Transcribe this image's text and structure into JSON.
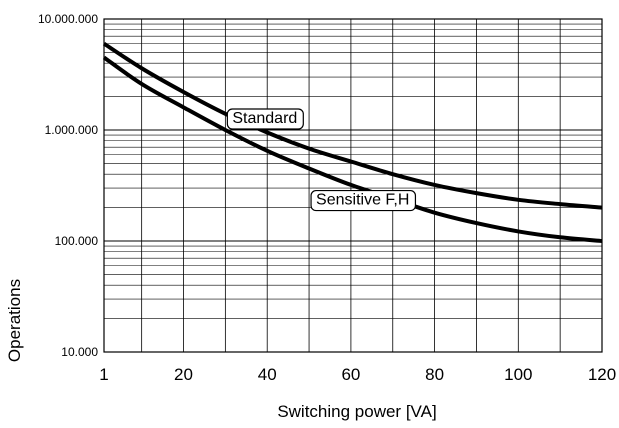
{
  "chart_data": {
    "type": "line",
    "title": "",
    "xlabel": "Switching power  [VA]",
    "ylabel": "Operations",
    "x_scale": "linear",
    "y_scale": "log",
    "xlim": [
      1,
      120
    ],
    "ylim": [
      10000,
      10000000
    ],
    "grid": true,
    "x_ticks": [
      1,
      20,
      40,
      60,
      80,
      100,
      120
    ],
    "x_tick_labels": [
      "1",
      "20",
      "40",
      "60",
      "80",
      "100",
      "120"
    ],
    "y_ticks": [
      10000,
      100000,
      1000000,
      10000000
    ],
    "y_tick_labels": [
      "10.000",
      "100.000",
      "1.000.000",
      "10.000.000"
    ],
    "series": [
      {
        "name": "Standard",
        "x": [
          1,
          10,
          20,
          30,
          40,
          50,
          60,
          70,
          80,
          90,
          100,
          110,
          120
        ],
        "y": [
          6000000,
          3600000,
          2200000,
          1400000,
          950000,
          680000,
          520000,
          400000,
          320000,
          270000,
          235000,
          215000,
          200000
        ]
      },
      {
        "name": "Sensitive F,H",
        "x": [
          1,
          10,
          20,
          30,
          40,
          50,
          60,
          70,
          80,
          90,
          100,
          110,
          120
        ],
        "y": [
          4500000,
          2600000,
          1600000,
          1000000,
          650000,
          450000,
          320000,
          240000,
          180000,
          145000,
          122000,
          108000,
          100000
        ]
      }
    ],
    "annotations": [
      {
        "text": "Standard",
        "series": "Standard"
      },
      {
        "text": "Sensitive F,H",
        "series": "Sensitive F,H"
      }
    ]
  }
}
